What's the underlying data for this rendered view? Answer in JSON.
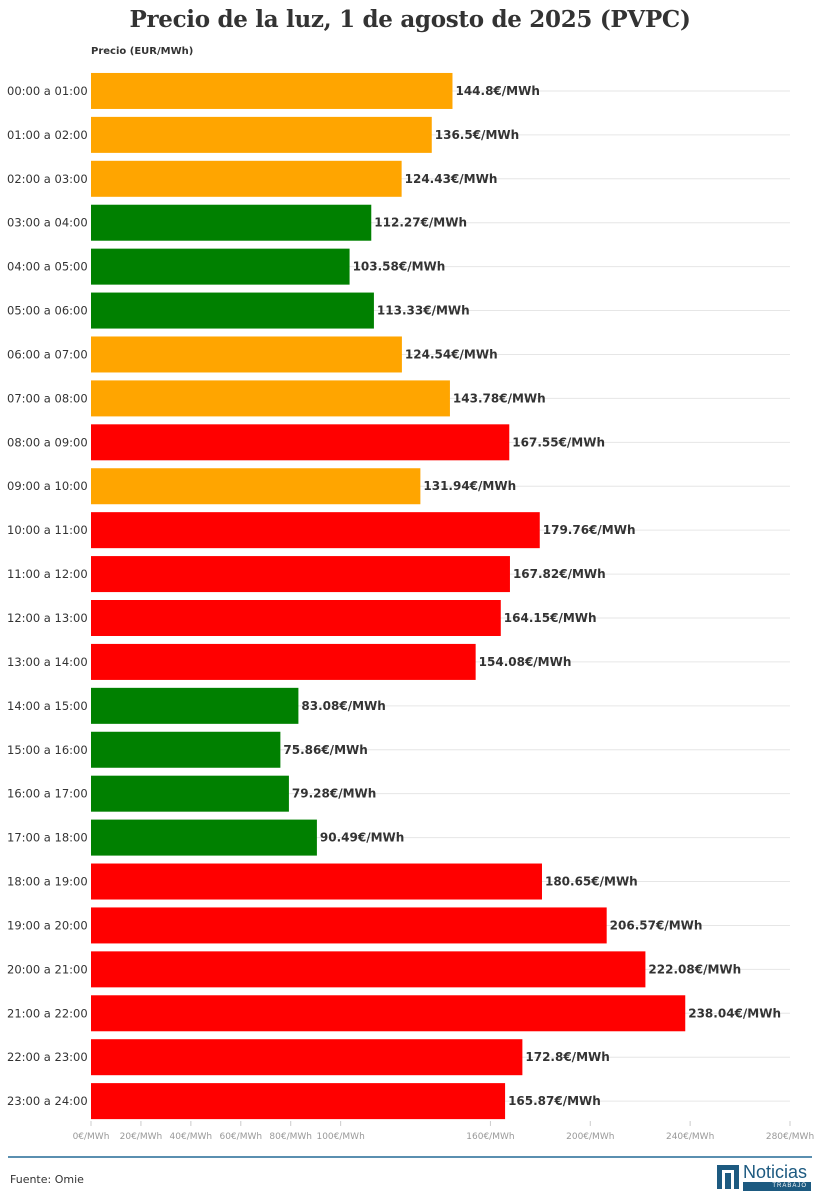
{
  "chart_data": {
    "type": "bar",
    "orientation": "horizontal",
    "title": "Precio de la luz, 1 de agosto de 2025 (PVPC)",
    "ylabel": "Precio (EUR/MWh)",
    "value_suffix": "€/MWh",
    "xlim": [
      0,
      280
    ],
    "grid": true,
    "categories": [
      "00:00 a 01:00",
      "01:00 a 02:00",
      "02:00 a 03:00",
      "03:00 a 04:00",
      "04:00 a 05:00",
      "05:00 a 06:00",
      "06:00 a 07:00",
      "07:00 a 08:00",
      "08:00 a 09:00",
      "09:00 a 10:00",
      "10:00 a 11:00",
      "11:00 a 12:00",
      "12:00 a 13:00",
      "13:00 a 14:00",
      "14:00 a 15:00",
      "15:00 a 16:00",
      "16:00 a 17:00",
      "17:00 a 18:00",
      "18:00 a 19:00",
      "19:00 a 20:00",
      "20:00 a 21:00",
      "21:00 a 22:00",
      "22:00 a 23:00",
      "23:00 a 24:00"
    ],
    "values": [
      144.8,
      136.5,
      124.43,
      112.27,
      103.58,
      113.33,
      124.54,
      143.78,
      167.55,
      131.94,
      179.76,
      167.82,
      164.15,
      154.08,
      83.08,
      75.86,
      79.28,
      90.49,
      180.65,
      206.57,
      222.08,
      238.04,
      172.8,
      165.87
    ],
    "bar_colors": [
      "#ffa500",
      "#ffa500",
      "#ffa500",
      "#008000",
      "#008000",
      "#008000",
      "#ffa500",
      "#ffa500",
      "#ff0000",
      "#ffa500",
      "#ff0000",
      "#ff0000",
      "#ff0000",
      "#ff0000",
      "#008000",
      "#008000",
      "#008000",
      "#008000",
      "#ff0000",
      "#ff0000",
      "#ff0000",
      "#ff0000",
      "#ff0000",
      "#ff0000"
    ],
    "x_ticks": [
      {
        "value": 0,
        "label": "0€/MWh"
      },
      {
        "value": 20,
        "label": "20€/MWh"
      },
      {
        "value": 40,
        "label": "40€/MWh"
      },
      {
        "value": 60,
        "label": "60€/MWh"
      },
      {
        "value": 80,
        "label": "80€/MWh"
      },
      {
        "value": 100,
        "label": "100€/MWh"
      },
      {
        "value": 160,
        "label": "160€/MWh"
      },
      {
        "value": 200,
        "label": "200€/MWh"
      },
      {
        "value": 240,
        "label": "240€/MWh"
      },
      {
        "value": 280,
        "label": "280€/MWh"
      }
    ]
  },
  "footer": {
    "source": "Fuente: Omie",
    "logo_name": "Noticias",
    "logo_sub": "TRABAJO"
  },
  "colors": {
    "high": "#ff0000",
    "medium": "#ffa500",
    "low": "#008000",
    "accent": "#1d5a80"
  }
}
